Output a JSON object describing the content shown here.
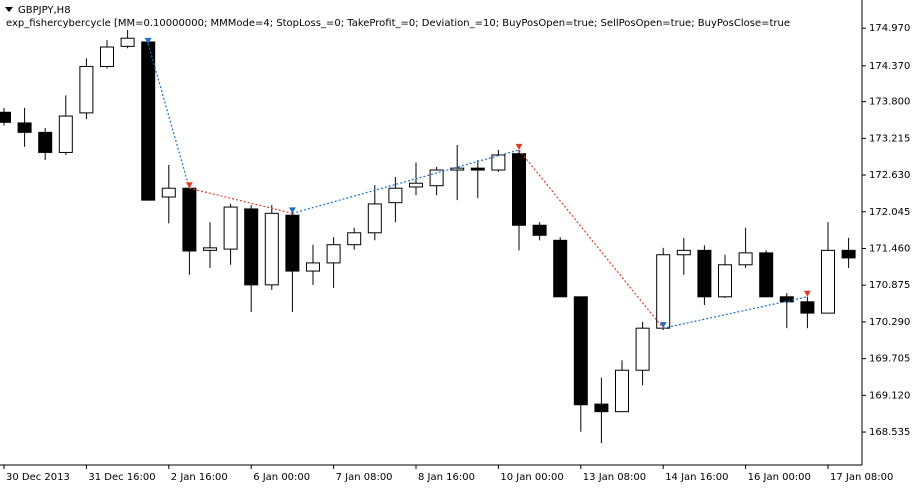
{
  "chart_data": {
    "type": "candlestick",
    "title": "GBPJPY,H8",
    "subtitle": "exp_fishercybercycle [MM=0.10000000; MMMode=4; StopLoss_=0; TakeProfit_=0; Deviation_=10; BuyPosOpen=true; SellPosOpen=true; BuyPosClose=true",
    "categories": [
      "30 Dec 2013",
      null,
      null,
      null,
      "31 Dec 16:00",
      null,
      null,
      null,
      "2 Jan 16:00",
      null,
      null,
      null,
      "6 Jan 00:00",
      null,
      null,
      null,
      "7 Jan 08:00",
      null,
      null,
      null,
      "8 Jan 16:00",
      null,
      null,
      null,
      "10 Jan 00:00",
      null,
      null,
      null,
      "13 Jan 08:00",
      null,
      null,
      null,
      "14 Jan 16:00",
      null,
      null,
      null,
      "16 Jan 00:00",
      null,
      null,
      null,
      "17 Jan 08:00",
      null
    ],
    "open": [
      173.63,
      173.46,
      173.31,
      172.99,
      173.62,
      174.36,
      174.68,
      174.75,
      172.28,
      172.42,
      171.43,
      171.45,
      172.09,
      170.88,
      171.99,
      171.1,
      171.23,
      171.52,
      171.71,
      172.19,
      172.44,
      172.46,
      172.71,
      172.74,
      172.71,
      172.97,
      171.83,
      171.59,
      170.69,
      168.98,
      168.86,
      169.52,
      170.19,
      171.36,
      171.43,
      170.69,
      171.2,
      171.39,
      170.69,
      170.61,
      170.43,
      171.43
    ],
    "high": [
      173.7,
      173.7,
      173.38,
      173.9,
      174.49,
      174.78,
      174.94,
      174.81,
      172.79,
      172.5,
      171.88,
      172.17,
      172.15,
      172.15,
      172.1,
      171.52,
      171.64,
      171.79,
      172.47,
      172.6,
      172.83,
      172.76,
      173.11,
      172.87,
      173.03,
      173.03,
      171.88,
      171.64,
      170.69,
      169.4,
      169.68,
      170.29,
      171.47,
      171.63,
      171.51,
      171.36,
      171.79,
      171.43,
      170.75,
      170.69,
      171.88,
      171.63
    ],
    "low": [
      173.42,
      173.08,
      172.87,
      172.95,
      173.52,
      174.33,
      174.65,
      172.23,
      171.86,
      171.04,
      171.15,
      171.2,
      170.45,
      170.8,
      170.45,
      170.88,
      170.83,
      171.44,
      171.59,
      171.88,
      172.31,
      172.31,
      172.23,
      172.26,
      172.68,
      171.43,
      171.59,
      170.69,
      168.54,
      168.36,
      168.86,
      169.28,
      170.16,
      171.04,
      170.56,
      170.67,
      171.15,
      170.69,
      170.19,
      170.19,
      170.43,
      171.15
    ],
    "close": [
      173.47,
      173.31,
      172.99,
      173.57,
      174.36,
      174.67,
      174.81,
      172.23,
      172.42,
      171.42,
      171.47,
      172.12,
      170.88,
      172.02,
      171.1,
      171.23,
      171.52,
      171.71,
      172.17,
      172.42,
      172.5,
      172.71,
      172.74,
      172.71,
      172.95,
      171.83,
      171.67,
      170.69,
      168.97,
      168.86,
      169.52,
      170.19,
      171.36,
      171.43,
      170.69,
      171.2,
      171.39,
      170.69,
      170.61,
      170.43,
      171.43,
      171.31
    ],
    "up_color": "#ffffff",
    "down_color": "#000000",
    "trades": {
      "x": [
        7,
        9,
        14,
        25,
        32,
        39
      ],
      "values": [
        174.72,
        172.42,
        172.02,
        173.03,
        170.19,
        170.69
      ],
      "colors": [
        "#1e6fc8",
        "#e03c28",
        "#1e6fc8",
        "#e03c28",
        "#1e6fc8",
        "#e03c28"
      ]
    },
    "ylim": [
      168.01,
      175.18
    ],
    "yticks": [
      {
        "value": 174.97,
        "label": "174.970"
      },
      {
        "value": 174.37,
        "label": "174.370"
      },
      {
        "value": 173.8,
        "label": "173.800"
      },
      173.215,
      {
        "value": 172.63,
        "label": "172.630"
      },
      172.045,
      {
        "value": 171.46,
        "label": "171.460"
      },
      170.875,
      {
        "value": 170.29,
        "label": "170.290"
      },
      169.705,
      {
        "value": 169.12,
        "label": "169.120"
      },
      168.535
    ]
  }
}
